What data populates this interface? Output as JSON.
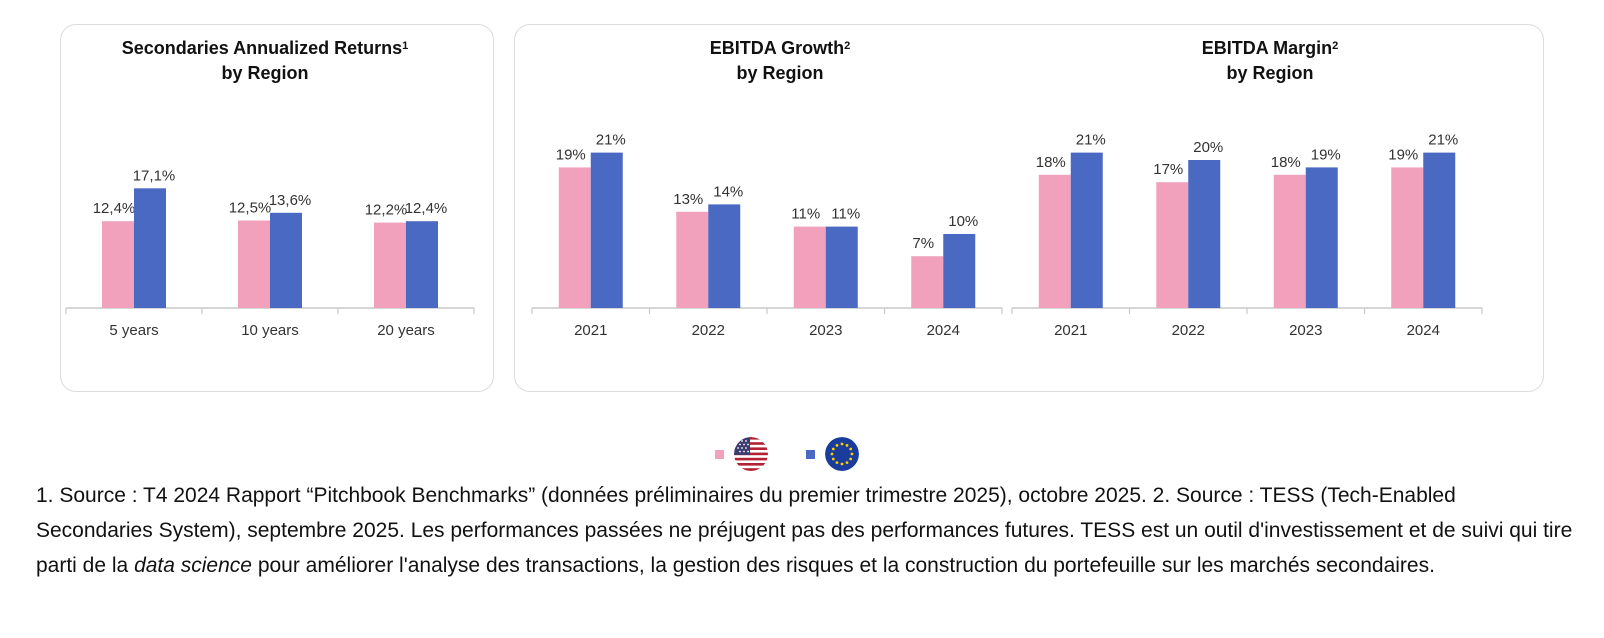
{
  "colors": {
    "us": "#f2a1bc",
    "eu": "#4a69c2",
    "axis": "#c8c8c8",
    "label": "#333333"
  },
  "chart_data": [
    {
      "type": "bar",
      "title": "Secondaries Annualized Returns",
      "title_sup": "1",
      "subtitle": "by Region",
      "categories": [
        "5 years",
        "10 years",
        "20 years"
      ],
      "series": [
        {
          "values": [
            12.4,
            12.5,
            12.2
          ],
          "labels": [
            "12,4%",
            "12,5%",
            "12,2%"
          ],
          "color": "#f2a1bc"
        },
        {
          "values": [
            17.1,
            13.6,
            12.4
          ],
          "labels": [
            "17,1%",
            "13,6%",
            "12,4%"
          ],
          "color": "#4a69c2"
        }
      ],
      "ylim": [
        0,
        20
      ]
    },
    {
      "type": "bar",
      "title": "EBITDA Growth",
      "title_sup": "2",
      "subtitle": "by Region",
      "categories": [
        "2021",
        "2022",
        "2023",
        "2024"
      ],
      "series": [
        {
          "values": [
            19,
            13,
            11,
            7
          ],
          "labels": [
            "19%",
            "13%",
            "11%",
            "7%"
          ],
          "color": "#f2a1bc"
        },
        {
          "values": [
            21,
            14,
            11,
            10
          ],
          "labels": [
            "21%",
            "14%",
            "11%",
            "10%"
          ],
          "color": "#4a69c2"
        }
      ],
      "ylim": [
        0,
        24
      ]
    },
    {
      "type": "bar",
      "title": "EBITDA Margin",
      "title_sup": "2",
      "subtitle": "by Region",
      "categories": [
        "2021",
        "2022",
        "2023",
        "2024"
      ],
      "series": [
        {
          "values": [
            18,
            17,
            18,
            19
          ],
          "labels": [
            "18%",
            "17%",
            "18%",
            "19%"
          ],
          "color": "#f2a1bc"
        },
        {
          "values": [
            21,
            20,
            19,
            21
          ],
          "labels": [
            "21%",
            "20%",
            "19%",
            "21%"
          ],
          "color": "#4a69c2"
        }
      ],
      "ylim": [
        0,
        24
      ]
    }
  ],
  "legend": [
    {
      "icon": "us-flag-icon",
      "color": "#f2a1bc"
    },
    {
      "icon": "eu-flag-icon",
      "color": "#4a69c2"
    }
  ],
  "footnote": {
    "part1": "1. Source : T4 2024 Rapport “Pitchbook Benchmarks” (données préliminaires du premier trimestre 2025), octobre 2025. 2. Source : TESS (Tech-Enabled Secondaries System), septembre 2025. Les performances passées ne préjugent pas des performances futures. TESS est un outil d'investissement et de suivi qui tire parti de la ",
    "italic": "data science",
    "part2": " pour améliorer l'analyse des transactions, la gestion des risques et la construction du portefeuille sur les marchés secondaires."
  }
}
